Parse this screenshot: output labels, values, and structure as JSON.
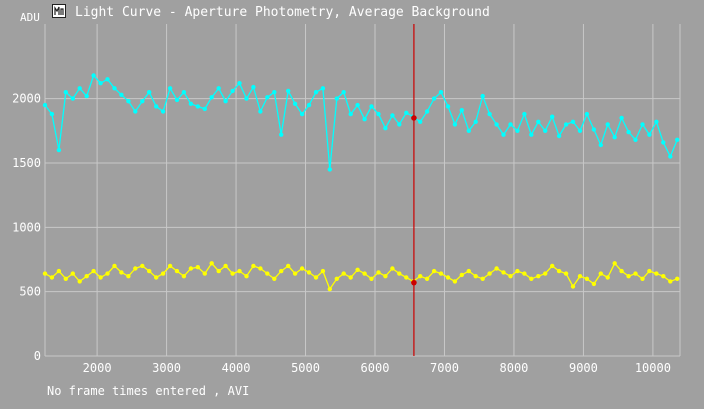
{
  "window": {
    "title": "Light Curve - Aperture Photometry, Average Background",
    "icon": "light-curve-app-icon"
  },
  "footer": {
    "note": "No frame times entered , AVI"
  },
  "colors": {
    "background": "#a0a0a0",
    "grid": "#c8c8c8",
    "series_target": "#00ffff",
    "series_comparison": "#ffff00",
    "cursor": "#cc0000"
  },
  "chart_data": {
    "type": "line",
    "title": "Light Curve - Aperture Photometry, Average Background",
    "ylabel": "ADU",
    "xlabel": "",
    "xlim": [
      1250,
      10390
    ],
    "ylim": [
      0,
      2580
    ],
    "x_ticks": [
      2000,
      3000,
      4000,
      5000,
      6000,
      7000,
      8000,
      9000,
      10000
    ],
    "y_ticks": [
      0,
      500,
      1000,
      1500,
      2000
    ],
    "grid": true,
    "legend": "none",
    "cursor": {
      "x": 6560,
      "points": [
        1850,
        570
      ]
    },
    "series": [
      {
        "color": "#00ffff",
        "x": [
          1250,
          1350,
          1450,
          1550,
          1650,
          1750,
          1850,
          1950,
          2050,
          2150,
          2250,
          2350,
          2450,
          2550,
          2650,
          2750,
          2850,
          2950,
          3050,
          3150,
          3250,
          3350,
          3450,
          3550,
          3650,
          3750,
          3850,
          3950,
          4050,
          4150,
          4250,
          4350,
          4450,
          4550,
          4650,
          4750,
          4850,
          4950,
          5050,
          5150,
          5250,
          5350,
          5450,
          5550,
          5650,
          5750,
          5850,
          5950,
          6050,
          6150,
          6250,
          6350,
          6450,
          6550,
          6650,
          6750,
          6850,
          6950,
          7050,
          7150,
          7250,
          7350,
          7450,
          7550,
          7650,
          7750,
          7850,
          7950,
          8050,
          8150,
          8250,
          8350,
          8450,
          8550,
          8650,
          8750,
          8850,
          8950,
          9050,
          9150,
          9250,
          9350,
          9450,
          9550,
          9650,
          9750,
          9850,
          9950,
          10050,
          10150,
          10250,
          10350
        ],
        "values": [
          1950,
          1880,
          1600,
          2050,
          2000,
          2080,
          2020,
          2180,
          2120,
          2150,
          2080,
          2030,
          1980,
          1900,
          1980,
          2050,
          1940,
          1900,
          2080,
          1990,
          2050,
          1960,
          1940,
          1920,
          2010,
          2080,
          1980,
          2060,
          2120,
          2000,
          2090,
          1900,
          2010,
          2050,
          1720,
          2060,
          1960,
          1880,
          1950,
          2050,
          2080,
          1450,
          2000,
          2050,
          1880,
          1950,
          1840,
          1940,
          1880,
          1770,
          1870,
          1800,
          1890,
          1860,
          1820,
          1900,
          2000,
          2050,
          1940,
          1800,
          1910,
          1750,
          1820,
          2020,
          1880,
          1800,
          1720,
          1800,
          1750,
          1880,
          1720,
          1820,
          1750,
          1860,
          1710,
          1800,
          1820,
          1750,
          1880,
          1760,
          1640,
          1800,
          1700,
          1850,
          1740,
          1680,
          1800,
          1720,
          1820,
          1660,
          1550,
          1680
        ]
      },
      {
        "color": "#ffff00",
        "x": [
          1250,
          1350,
          1450,
          1550,
          1650,
          1750,
          1850,
          1950,
          2050,
          2150,
          2250,
          2350,
          2450,
          2550,
          2650,
          2750,
          2850,
          2950,
          3050,
          3150,
          3250,
          3350,
          3450,
          3550,
          3650,
          3750,
          3850,
          3950,
          4050,
          4150,
          4250,
          4350,
          4450,
          4550,
          4650,
          4750,
          4850,
          4950,
          5050,
          5150,
          5250,
          5350,
          5450,
          5550,
          5650,
          5750,
          5850,
          5950,
          6050,
          6150,
          6250,
          6350,
          6450,
          6550,
          6650,
          6750,
          6850,
          6950,
          7050,
          7150,
          7250,
          7350,
          7450,
          7550,
          7650,
          7750,
          7850,
          7950,
          8050,
          8150,
          8250,
          8350,
          8450,
          8550,
          8650,
          8750,
          8850,
          8950,
          9050,
          9150,
          9250,
          9350,
          9450,
          9550,
          9650,
          9750,
          9850,
          9950,
          10050,
          10150,
          10250,
          10350
        ],
        "values": [
          640,
          610,
          660,
          600,
          640,
          580,
          620,
          660,
          610,
          640,
          700,
          650,
          620,
          680,
          700,
          660,
          610,
          640,
          700,
          660,
          620,
          680,
          690,
          640,
          720,
          660,
          700,
          640,
          660,
          620,
          700,
          680,
          640,
          600,
          660,
          700,
          640,
          680,
          650,
          610,
          660,
          520,
          600,
          640,
          610,
          670,
          640,
          600,
          650,
          620,
          680,
          640,
          610,
          580,
          620,
          600,
          660,
          640,
          610,
          580,
          630,
          660,
          620,
          600,
          640,
          680,
          650,
          620,
          660,
          640,
          600,
          620,
          640,
          700,
          660,
          640,
          540,
          620,
          600,
          560,
          640,
          610,
          720,
          660,
          620,
          640,
          600,
          660,
          640,
          620,
          580,
          600
        ]
      }
    ]
  }
}
